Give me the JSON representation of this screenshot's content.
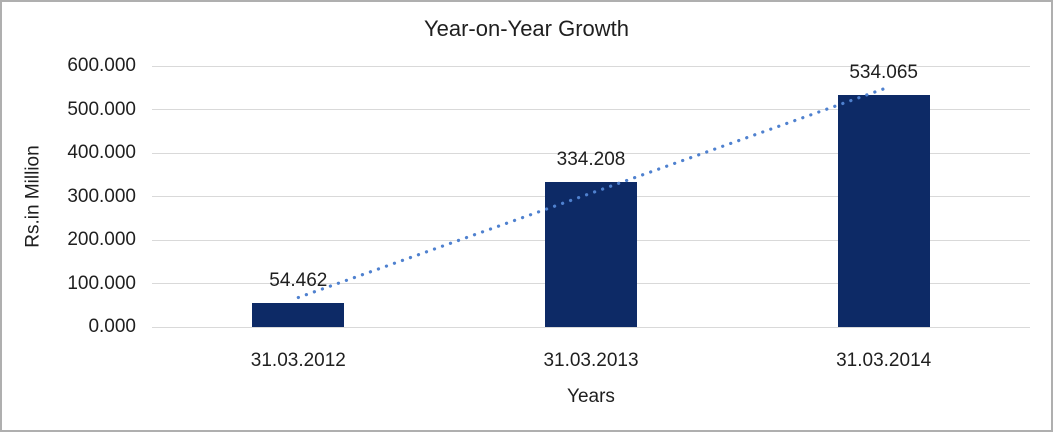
{
  "chart_data": {
    "type": "bar",
    "title": "Year-on-Year Growth",
    "xlabel": "Years",
    "ylabel": "Rs.in Million",
    "categories": [
      "31.03.2012",
      "31.03.2013",
      "31.03.2014"
    ],
    "values": [
      54.462,
      334.208,
      534.065
    ],
    "data_labels": [
      "54.462",
      "334.208",
      "534.065"
    ],
    "ylim": [
      0,
      600
    ],
    "ytick_step": 100,
    "ytick_labels": [
      "0.000",
      "100.000",
      "200.000",
      "300.000",
      "400.000",
      "500.000",
      "600.000"
    ],
    "grid": true,
    "legend": false,
    "trendline": {
      "type": "linear",
      "style": "dotted"
    },
    "colors": {
      "bar": "#0D2A66",
      "trendline": "#4F81CF",
      "gridline": "#D9D9D9",
      "text": "#1F1F1F",
      "border": "#AFAFAF",
      "background": "#FFFFFF"
    }
  }
}
